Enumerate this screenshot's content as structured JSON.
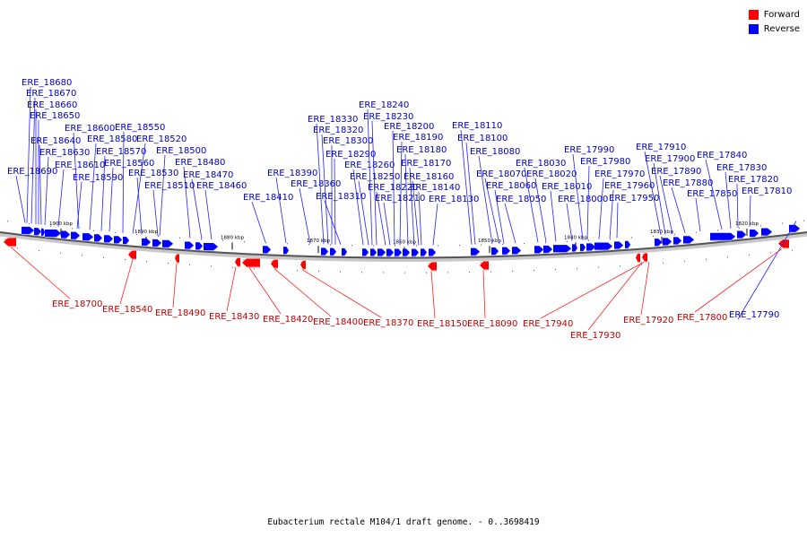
{
  "legend": {
    "forward_label": "Forward",
    "reverse_label": "Reverse",
    "forward_color": "#ff0000",
    "reverse_color": "#0000ff"
  },
  "caption": "Eubacterium rectale M104/1 draft genome. - 0..3698419",
  "ruler": [
    "1900 kbp",
    "1890 kbp",
    "1880 kbp",
    "1870 kbp",
    "1860 kbp",
    "1850 kbp",
    "1840 kbp",
    "1830 kbp",
    "1820 kbp"
  ],
  "reverse_genes": [
    "ERE_18680",
    "ERE_18670",
    "ERE_18660",
    "ERE_18650",
    "ERE_18640",
    "ERE_18630",
    "ERE_18690",
    "ERE_18610",
    "ERE_18600",
    "ERE_18580",
    "ERE_18590",
    "ERE_18570",
    "ERE_18560",
    "ERE_18550",
    "ERE_18520",
    "ERE_18500",
    "ERE_18530",
    "ERE_18480",
    "ERE_18470",
    "ERE_18510",
    "ERE_18460",
    "ERE_18410",
    "ERE_18390",
    "ERE_18360",
    "ERE_18330",
    "ERE_18320",
    "ERE_18300",
    "ERE_18290",
    "ERE_18310",
    "ERE_18260",
    "ERE_18250",
    "ERE_18240",
    "ERE_18230",
    "ERE_18220",
    "ERE_18210",
    "ERE_18200",
    "ERE_18190",
    "ERE_18180",
    "ERE_18170",
    "ERE_18160",
    "ERE_18140",
    "ERE_18130",
    "ERE_18110",
    "ERE_18100",
    "ERE_18080",
    "ERE_18070",
    "ERE_18060",
    "ERE_18050",
    "ERE_18030",
    "ERE_18020",
    "ERE_18010",
    "ERE_18000",
    "ERE_17990",
    "ERE_17980",
    "ERE_17970",
    "ERE_17960",
    "ERE_17950",
    "ERE_17910",
    "ERE_17900",
    "ERE_17890",
    "ERE_17880",
    "ERE_17850",
    "ERE_17840",
    "ERE_17830",
    "ERE_17820",
    "ERE_17810",
    "ERE_17790"
  ],
  "forward_genes": [
    "ERE_18700",
    "ERE_18540",
    "ERE_18490",
    "ERE_18430",
    "ERE_18420",
    "ERE_18400",
    "ERE_18370",
    "ERE_18150",
    "ERE_18090",
    "ERE_17940",
    "ERE_17930",
    "ERE_17920",
    "ERE_17800"
  ]
}
